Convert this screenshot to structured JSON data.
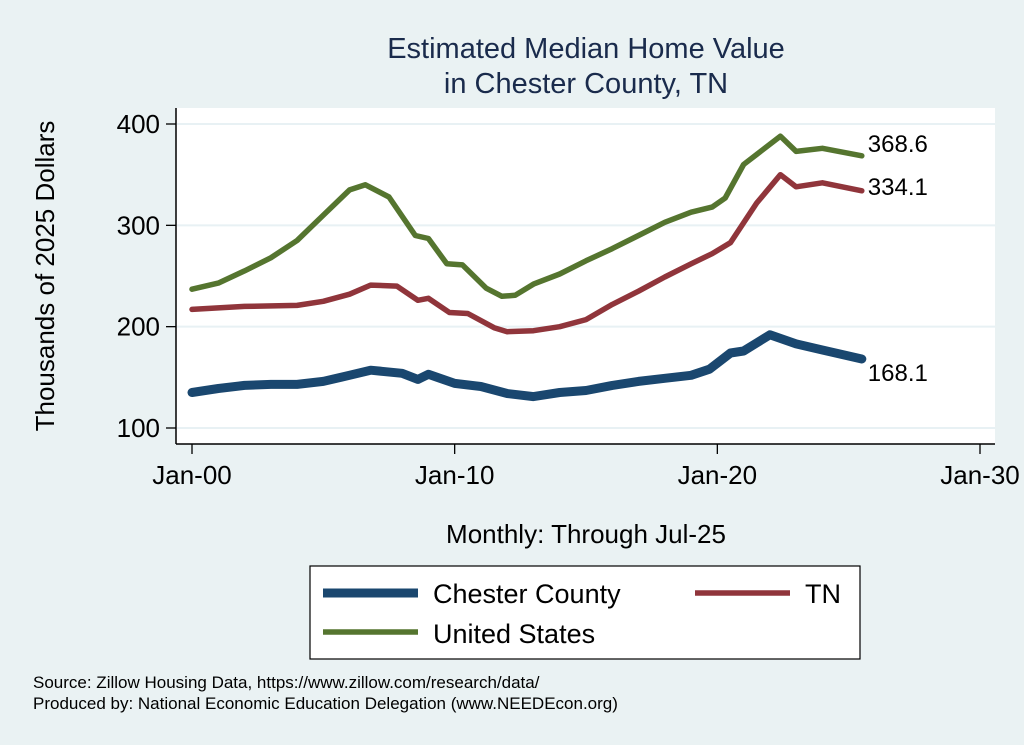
{
  "chart_data": {
    "type": "line",
    "title": [
      "Estimated Median Home Value",
      "in Chester County, TN"
    ],
    "xlabel": "Monthly: Through Jul-25",
    "ylabel": "Thousands of 2025 Dollars",
    "xlim": [
      2000,
      2030
    ],
    "ylim": [
      100,
      400
    ],
    "x_ticks": [
      {
        "value": 2000,
        "label": "Jan-00"
      },
      {
        "value": 2010,
        "label": "Jan-10"
      },
      {
        "value": 2020,
        "label": "Jan-20"
      },
      {
        "value": 2030,
        "label": "Jan-30"
      }
    ],
    "y_ticks": [
      {
        "value": 100,
        "label": "100"
      },
      {
        "value": 200,
        "label": "200"
      },
      {
        "value": 300,
        "label": "300"
      },
      {
        "value": 400,
        "label": "400"
      }
    ],
    "grid": true,
    "legend_position": "bottom",
    "series": [
      {
        "name": "Chester County",
        "color": "#1a476f",
        "end_label": "168.1",
        "x": [
          2000,
          2001,
          2002,
          2003,
          2004,
          2005,
          2006,
          2006.8,
          2008,
          2008.6,
          2009,
          2010,
          2011,
          2012,
          2013,
          2014,
          2015,
          2016,
          2017,
          2018,
          2019,
          2019.7,
          2020.5,
          2021,
          2021.5,
          2022,
          2023,
          2024,
          2025.5
        ],
        "values": [
          135,
          139,
          142,
          143,
          143,
          146,
          152,
          157,
          154,
          148,
          153,
          144,
          141,
          134,
          131,
          135,
          137,
          142,
          146,
          149,
          152,
          158,
          174,
          176,
          184,
          192,
          183,
          177,
          168.1
        ]
      },
      {
        "name": "TN",
        "color": "#90353b",
        "end_label": "334.1",
        "x": [
          2000,
          2002,
          2004,
          2005,
          2006,
          2006.8,
          2007.8,
          2008.6,
          2009,
          2009.8,
          2010.5,
          2011.5,
          2012,
          2013,
          2014,
          2015,
          2016,
          2017,
          2018,
          2019,
          2019.8,
          2020.5,
          2021.5,
          2022.4,
          2023,
          2024,
          2025.5
        ],
        "values": [
          217,
          220,
          221,
          225,
          232,
          241,
          240,
          226,
          228,
          214,
          213,
          199,
          195,
          196,
          200,
          207,
          222,
          235,
          249,
          262,
          272,
          283,
          322,
          350,
          338,
          342,
          334.1
        ]
      },
      {
        "name": "United States",
        "color": "#55752f",
        "end_label": "368.6",
        "x": [
          2000,
          2001,
          2002,
          2003,
          2004,
          2005,
          2006,
          2006.6,
          2007.5,
          2008.5,
          2009,
          2009.7,
          2010.3,
          2011.2,
          2011.8,
          2012.3,
          2013,
          2014,
          2015,
          2016,
          2017,
          2018,
          2019,
          2019.8,
          2020.3,
          2021,
          2021.5,
          2022.4,
          2023,
          2024,
          2025.5
        ],
        "values": [
          237,
          243,
          255,
          268,
          285,
          310,
          335,
          340,
          328,
          290,
          287,
          262,
          261,
          238,
          230,
          231,
          242,
          252,
          265,
          277,
          290,
          303,
          313,
          318,
          327,
          360,
          370,
          388,
          373,
          376,
          368.6
        ]
      }
    ],
    "legend_order": [
      "Chester County",
      "TN",
      "United States"
    ],
    "notes": [
      "Source: Zillow Housing Data, https://www.zillow.com/research/data/",
      "Produced by: National Economic Education Delegation (www.NEEDEcon.org)"
    ]
  }
}
